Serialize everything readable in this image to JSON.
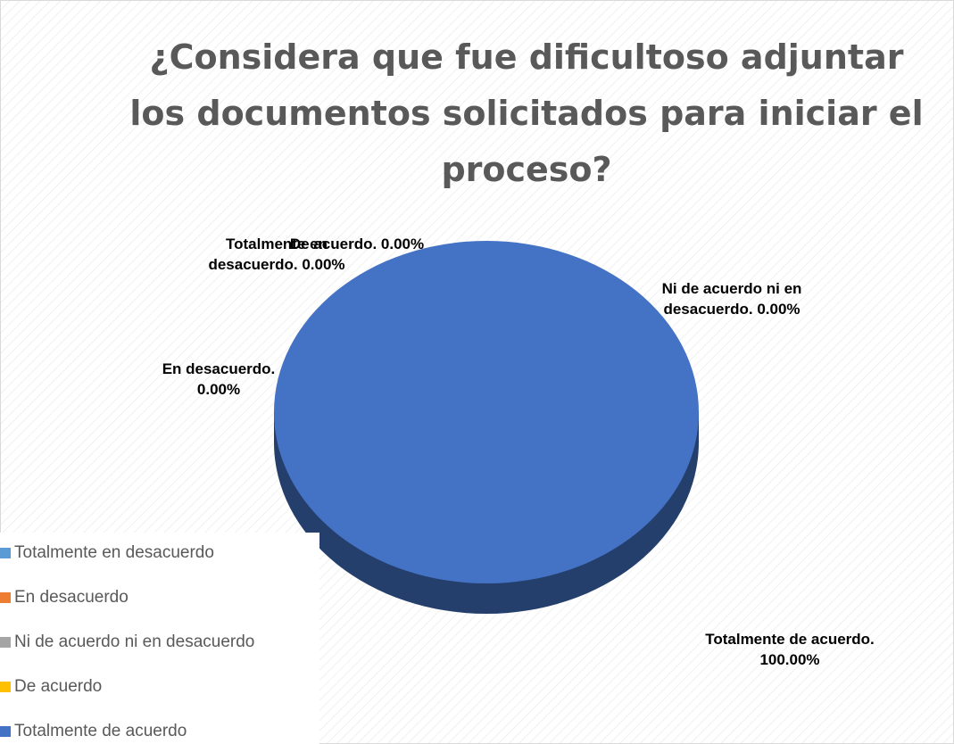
{
  "chart_data": {
    "type": "pie",
    "title": [
      "¿Considera que fue dificultoso adjuntar",
      "los documentos solicitados para iniciar el",
      "proceso?"
    ],
    "categories": [
      "Totalmente en desacuerdo",
      "En desacuerdo",
      "Ni de acuerdo ni en desacuerdo",
      "De acuerdo",
      "Totalmente de acuerdo"
    ],
    "values": [
      0,
      0,
      0,
      0,
      100
    ],
    "value_labels": [
      "Totalmente en desacuerdo. 0.00%",
      "En desacuerdo. 0.00%",
      "Ni de acuerdo ni en desacuerdo. 0.00%",
      "De acuerdo. 0.00%",
      "Totalmente de acuerdo. 100.00%"
    ],
    "colors": [
      "#5b9bd5",
      "#ed7d31",
      "#a5a5a5",
      "#ffc000",
      "#4472c4"
    ],
    "legend": "bottom-left"
  }
}
